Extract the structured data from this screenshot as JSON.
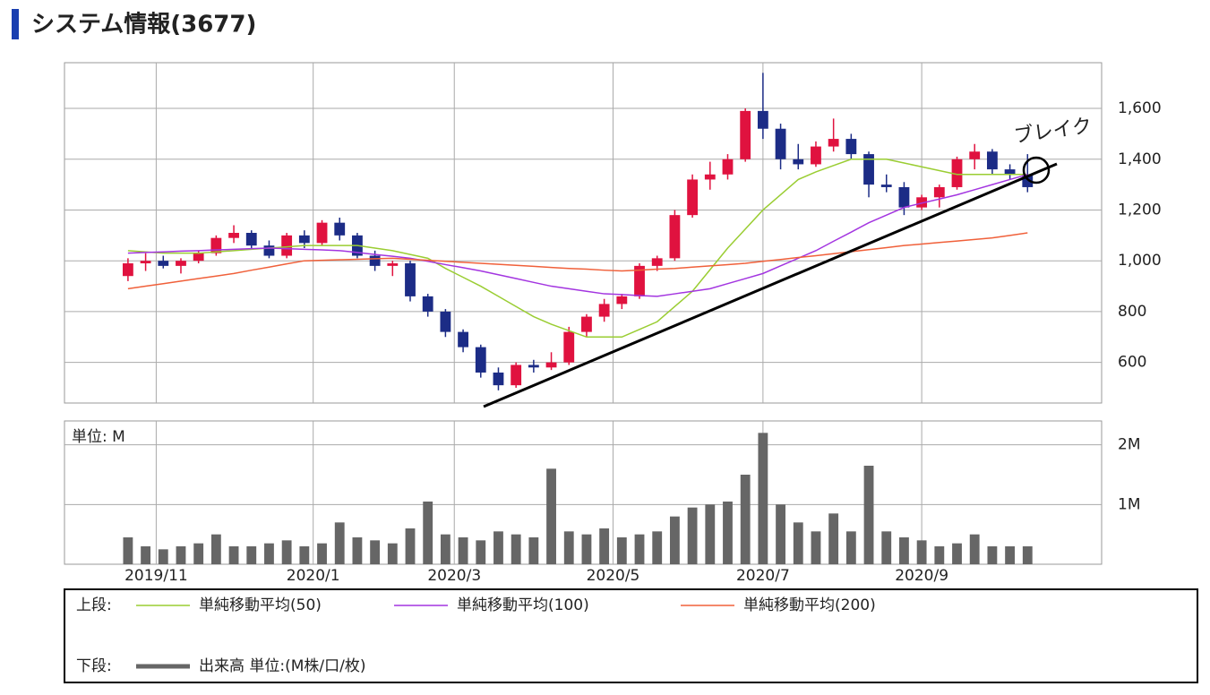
{
  "header": {
    "title": "システム情報(3677)"
  },
  "chart_data": [
    {
      "type": "candlestick",
      "annotations": [
        "ブレイク"
      ],
      "up_color": "#e0123f",
      "down_color": "#1c2c86",
      "ylim": [
        440,
        1780
      ],
      "yticks": [
        600,
        800,
        {
          "value": 1000,
          "label": "1,000"
        },
        {
          "value": 1200,
          "label": "1,200"
        },
        {
          "value": 1400,
          "label": "1,400"
        },
        {
          "value": 1600,
          "label": "1,600"
        }
      ],
      "xlim": [
        -3.6,
        55.2
      ],
      "xticks": [
        {
          "value": 1.6,
          "label": "2019/11"
        },
        {
          "value": 10.5,
          "label": "2020/1"
        },
        {
          "value": 18.5,
          "label": "2020/3"
        },
        {
          "value": 27.5,
          "label": "2020/5"
        },
        {
          "value": 36,
          "label": "2020/7"
        },
        {
          "value": 45,
          "label": "2020/9"
        }
      ],
      "grid": true,
      "legend_label": "上段:",
      "ohlc": {
        "open": [
          940,
          990,
          1000,
          980,
          1000,
          1030,
          1090,
          1110,
          1060,
          1020,
          1100,
          1070,
          1150,
          1100,
          1020,
          980,
          990,
          860,
          800,
          720,
          660,
          560,
          510,
          590,
          580,
          600,
          720,
          780,
          830,
          860,
          980,
          1010,
          1180,
          1320,
          1340,
          1400,
          1590,
          1520,
          1400,
          1380,
          1450,
          1480,
          1420,
          1300,
          1290,
          1210,
          1250,
          1290,
          1400,
          1430,
          1360,
          1340
        ],
        "high": [
          1010,
          1030,
          1020,
          1010,
          1040,
          1100,
          1140,
          1120,
          1080,
          1110,
          1120,
          1160,
          1170,
          1110,
          1040,
          1000,
          1000,
          870,
          810,
          730,
          670,
          580,
          600,
          610,
          640,
          740,
          790,
          850,
          870,
          990,
          1020,
          1200,
          1340,
          1390,
          1420,
          1600,
          1740,
          1540,
          1460,
          1470,
          1560,
          1500,
          1430,
          1340,
          1310,
          1260,
          1300,
          1410,
          1460,
          1440,
          1380,
          1420
        ],
        "low": [
          920,
          960,
          970,
          950,
          990,
          1020,
          1070,
          1050,
          1010,
          1010,
          1050,
          1060,
          1080,
          1010,
          960,
          940,
          840,
          780,
          700,
          640,
          540,
          490,
          500,
          560,
          570,
          590,
          700,
          760,
          810,
          850,
          960,
          1000,
          1170,
          1280,
          1320,
          1390,
          1480,
          1360,
          1360,
          1370,
          1430,
          1400,
          1250,
          1270,
          1180,
          1200,
          1210,
          1280,
          1360,
          1340,
          1320,
          1270
        ],
        "close": [
          990,
          1000,
          980,
          1000,
          1030,
          1090,
          1110,
          1060,
          1020,
          1100,
          1070,
          1150,
          1100,
          1020,
          980,
          990,
          860,
          800,
          720,
          660,
          560,
          510,
          590,
          580,
          600,
          720,
          780,
          830,
          860,
          980,
          1010,
          1180,
          1320,
          1340,
          1400,
          1590,
          1520,
          1400,
          1380,
          1450,
          1480,
          1420,
          1300,
          1290,
          1210,
          1250,
          1290,
          1400,
          1430,
          1360,
          1340,
          1290
        ]
      },
      "series": [
        {
          "name": "単純移動平均(50)",
          "color": "#9acd32",
          "values": [
            1040,
            1035,
            1030,
            1030,
            1030,
            1035,
            1040,
            1045,
            1050,
            1055,
            1060,
            1060,
            1060,
            1060,
            1050,
            1040,
            1025,
            1010,
            970,
            935,
            900,
            860,
            820,
            780,
            750,
            725,
            700,
            700,
            700,
            730,
            760,
            820,
            880,
            965,
            1050,
            1125,
            1200,
            1260,
            1320,
            1350,
            1375,
            1400,
            1400,
            1400,
            1385,
            1370,
            1355,
            1340,
            1340,
            1340,
            1340,
            1340
          ]
        },
        {
          "name": "単純移動平均(100)",
          "color": "#a335e0",
          "values": [
            1030,
            1033,
            1035,
            1038,
            1040,
            1043,
            1045,
            1048,
            1050,
            1048,
            1045,
            1043,
            1040,
            1033,
            1025,
            1018,
            1010,
            998,
            985,
            973,
            960,
            945,
            930,
            915,
            900,
            890,
            880,
            870,
            867,
            863,
            860,
            870,
            880,
            890,
            910,
            930,
            950,
            980,
            1010,
            1040,
            1077,
            1113,
            1150,
            1180,
            1210,
            1227,
            1243,
            1260,
            1280,
            1300,
            1320,
            1340
          ]
        },
        {
          "name": "単純移動平均(200)",
          "color": "#f0603a",
          "values": [
            890,
            900,
            910,
            920,
            930,
            940,
            950,
            963,
            975,
            988,
            1000,
            1002,
            1004,
            1006,
            1008,
            1010,
            1006,
            1002,
            998,
            994,
            990,
            986,
            982,
            978,
            974,
            970,
            967,
            963,
            960,
            963,
            967,
            970,
            975,
            980,
            985,
            990,
            998,
            1005,
            1013,
            1020,
            1028,
            1036,
            1044,
            1052,
            1060,
            1066,
            1072,
            1078,
            1084,
            1090,
            1100,
            1110
          ]
        }
      ]
    },
    {
      "type": "bar",
      "unit_label": "単位: M",
      "legend_label": "下段:",
      "ylim": [
        0,
        2.4
      ],
      "yticks": [
        {
          "value": 1,
          "label": "1M"
        },
        {
          "value": 2,
          "label": "2M"
        }
      ],
      "series": [
        {
          "name": "出来高 単位:(M株/口/枚)",
          "color": "#666666",
          "values": [
            0.45,
            0.3,
            0.25,
            0.3,
            0.35,
            0.5,
            0.3,
            0.3,
            0.35,
            0.4,
            0.3,
            0.35,
            0.7,
            0.45,
            0.4,
            0.35,
            0.6,
            1.05,
            0.5,
            0.45,
            0.4,
            0.55,
            0.5,
            0.45,
            1.6,
            0.55,
            0.5,
            0.6,
            0.45,
            0.5,
            0.55,
            0.8,
            0.95,
            1.0,
            1.05,
            1.5,
            2.2,
            1.0,
            0.7,
            0.55,
            0.85,
            0.55,
            1.65,
            0.55,
            0.45,
            0.4,
            0.3,
            0.35,
            0.5,
            0.3,
            0.3,
            0.3
          ]
        }
      ]
    }
  ]
}
